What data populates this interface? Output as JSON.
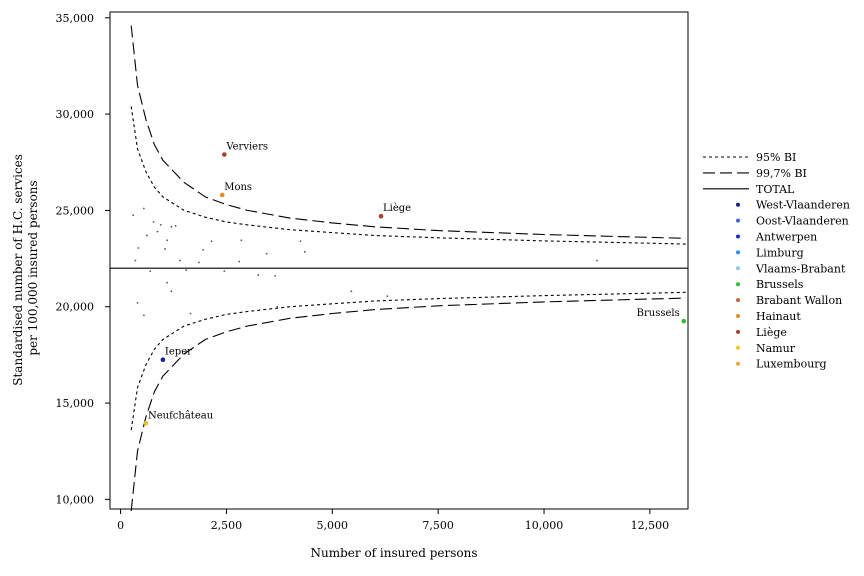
{
  "chart_data": {
    "type": "scatter",
    "title": "",
    "xlabel": "Number of insured persons",
    "ylabel": [
      "Standardised number of H.C. services",
      "per 100,000 insured persons"
    ],
    "xlim": [
      -250,
      13400
    ],
    "ylim": [
      9500,
      35300
    ],
    "xticks": [
      0,
      2500,
      5000,
      7500,
      10000,
      12500
    ],
    "xtick_labels": [
      "0",
      "2,500",
      "5,000",
      "7,500",
      "10,000",
      "12,500"
    ],
    "yticks": [
      10000,
      15000,
      20000,
      25000,
      30000,
      35000
    ],
    "ytick_labels": [
      "10,000",
      "15,000",
      "20,000",
      "25,000",
      "30,000",
      "35,000"
    ],
    "grid": false,
    "legend_position": "right",
    "total": 22000,
    "band_curves": [
      {
        "name": "95% BI",
        "style": "dotted",
        "upper": [
          [
            250,
            30400
          ],
          [
            400,
            28200
          ],
          [
            600,
            27000
          ],
          [
            800,
            26200
          ],
          [
            1000,
            25700
          ],
          [
            1500,
            25000
          ],
          [
            2000,
            24650
          ],
          [
            2500,
            24400
          ],
          [
            3000,
            24250
          ],
          [
            4000,
            24000
          ],
          [
            5000,
            23850
          ],
          [
            6000,
            23700
          ],
          [
            7500,
            23580
          ],
          [
            10000,
            23420
          ],
          [
            12500,
            23300
          ],
          [
            13350,
            23250
          ]
        ],
        "lower": [
          [
            250,
            13600
          ],
          [
            400,
            15800
          ],
          [
            600,
            17000
          ],
          [
            800,
            17800
          ],
          [
            1000,
            18300
          ],
          [
            1500,
            19000
          ],
          [
            2000,
            19350
          ],
          [
            2500,
            19600
          ],
          [
            3000,
            19750
          ],
          [
            4000,
            20000
          ],
          [
            5000,
            20150
          ],
          [
            6000,
            20300
          ],
          [
            7500,
            20420
          ],
          [
            10000,
            20580
          ],
          [
            12500,
            20700
          ],
          [
            13350,
            20750
          ]
        ]
      },
      {
        "name": "99,7% BI",
        "style": "dashed",
        "upper": [
          [
            250,
            34600
          ],
          [
            400,
            31500
          ],
          [
            600,
            29700
          ],
          [
            800,
            28400
          ],
          [
            1000,
            27600
          ],
          [
            1500,
            26450
          ],
          [
            2000,
            25700
          ],
          [
            2500,
            25300
          ],
          [
            3000,
            25000
          ],
          [
            4000,
            24600
          ],
          [
            5000,
            24350
          ],
          [
            6000,
            24150
          ],
          [
            7500,
            23950
          ],
          [
            10000,
            23750
          ],
          [
            12500,
            23600
          ],
          [
            13350,
            23550
          ]
        ],
        "lower": [
          [
            250,
            9400
          ],
          [
            400,
            12500
          ],
          [
            600,
            14300
          ],
          [
            800,
            15600
          ],
          [
            1000,
            16400
          ],
          [
            1500,
            17550
          ],
          [
            2000,
            18300
          ],
          [
            2500,
            18700
          ],
          [
            3000,
            19000
          ],
          [
            4000,
            19400
          ],
          [
            5000,
            19650
          ],
          [
            6000,
            19850
          ],
          [
            7500,
            20050
          ],
          [
            10000,
            20250
          ],
          [
            12500,
            20400
          ],
          [
            13350,
            20450
          ]
        ]
      }
    ],
    "legend": [
      {
        "label": "95% BI",
        "kind": "line",
        "style": "dotted"
      },
      {
        "label": "99,7% BI",
        "kind": "line",
        "style": "dashed"
      },
      {
        "label": "TOTAL",
        "kind": "line",
        "style": "solid"
      },
      {
        "label": "West-Vlaanderen",
        "kind": "dot",
        "color": "#1c1c8a"
      },
      {
        "label": "Oost-Vlaanderen",
        "kind": "dot",
        "color": "#3a66d6"
      },
      {
        "label": "Antwerpen",
        "kind": "dot",
        "color": "#1a2fc8"
      },
      {
        "label": "Limburg",
        "kind": "dot",
        "color": "#2f8fe0"
      },
      {
        "label": "Vlaams-Brabant",
        "kind": "dot",
        "color": "#8fc7ea"
      },
      {
        "label": "Brussels",
        "kind": "dot",
        "color": "#2ebd3a"
      },
      {
        "label": "Brabant Wallon",
        "kind": "dot",
        "color": "#c8663a"
      },
      {
        "label": "Hainaut",
        "kind": "dot",
        "color": "#e58a26"
      },
      {
        "label": "Liège",
        "kind": "dot",
        "color": "#a5442e"
      },
      {
        "label": "Namur",
        "kind": "dot",
        "color": "#f0c21f"
      },
      {
        "label": "Luxembourg",
        "kind": "dot",
        "color": "#f0a23a"
      }
    ],
    "highlighted_points": [
      {
        "label": "Verviers",
        "x": 2450,
        "y": 27900,
        "color": "#a5442e",
        "anchor": "right"
      },
      {
        "label": "Mons",
        "x": 2400,
        "y": 25800,
        "color": "#e58a26",
        "anchor": "right"
      },
      {
        "label": "Liège",
        "x": 6150,
        "y": 24700,
        "color": "#a5442e",
        "anchor": "right"
      },
      {
        "label": "Ieper",
        "x": 1000,
        "y": 17250,
        "color": "#1c1c8a",
        "anchor": "right"
      },
      {
        "label": "Neufchâteau",
        "x": 600,
        "y": 13950,
        "color": "#f0c21f",
        "anchor": "right"
      },
      {
        "label": "Brussels",
        "x": 13300,
        "y": 19250,
        "color": "#2ebd3a",
        "anchor": "left"
      }
    ],
    "points": [
      {
        "x": 300,
        "y": 24750
      },
      {
        "x": 350,
        "y": 22400
      },
      {
        "x": 420,
        "y": 23050
      },
      {
        "x": 550,
        "y": 25100
      },
      {
        "x": 620,
        "y": 23700
      },
      {
        "x": 780,
        "y": 24400
      },
      {
        "x": 870,
        "y": 23900
      },
      {
        "x": 950,
        "y": 24250
      },
      {
        "x": 1050,
        "y": 23000
      },
      {
        "x": 1100,
        "y": 23450
      },
      {
        "x": 1200,
        "y": 24150
      },
      {
        "x": 1300,
        "y": 24200
      },
      {
        "x": 1400,
        "y": 22400
      },
      {
        "x": 1850,
        "y": 22300
      },
      {
        "x": 1950,
        "y": 22950
      },
      {
        "x": 2150,
        "y": 23400
      },
      {
        "x": 2800,
        "y": 22350
      },
      {
        "x": 2850,
        "y": 23450
      },
      {
        "x": 3450,
        "y": 22750
      },
      {
        "x": 4250,
        "y": 23400
      },
      {
        "x": 4350,
        "y": 22850
      },
      {
        "x": 11250,
        "y": 22400
      },
      {
        "x": 400,
        "y": 20200
      },
      {
        "x": 550,
        "y": 19550
      },
      {
        "x": 700,
        "y": 21850
      },
      {
        "x": 1100,
        "y": 21250
      },
      {
        "x": 1200,
        "y": 20800
      },
      {
        "x": 1550,
        "y": 21900
      },
      {
        "x": 1650,
        "y": 19650
      },
      {
        "x": 2450,
        "y": 21850
      },
      {
        "x": 3250,
        "y": 21650
      },
      {
        "x": 3650,
        "y": 21600
      },
      {
        "x": 3700,
        "y": 20000
      },
      {
        "x": 5450,
        "y": 20800
      },
      {
        "x": 6300,
        "y": 20550
      }
    ]
  }
}
